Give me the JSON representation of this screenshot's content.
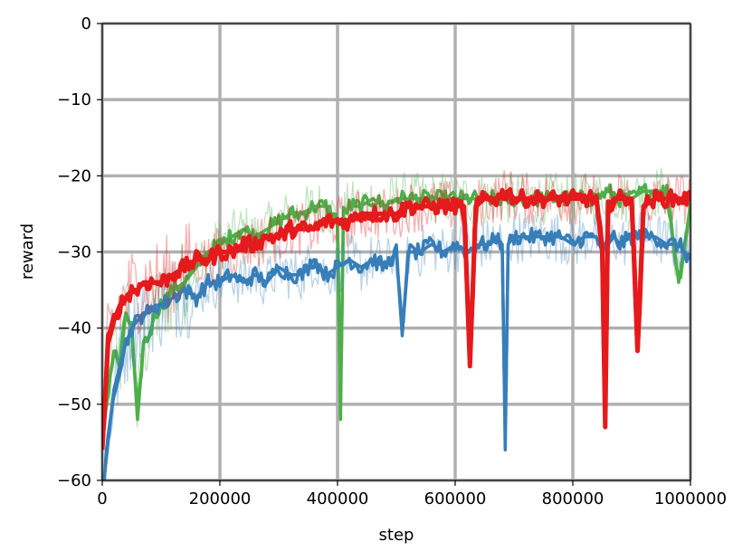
{
  "chart_data": {
    "type": "line",
    "xlabel": "step",
    "ylabel": "reward",
    "xlim": [
      0,
      1000000
    ],
    "ylim": [
      -60,
      0
    ],
    "x_ticks": [
      0,
      200000,
      400000,
      600000,
      800000,
      1000000
    ],
    "x_tick_labels": [
      "0",
      "200000",
      "400000",
      "600000",
      "800000",
      "1000000"
    ],
    "y_ticks": [
      0,
      -10,
      -20,
      -30,
      -40,
      -50,
      -60
    ],
    "y_tick_labels": [
      "0",
      "−10",
      "−20",
      "−30",
      "−40",
      "−50",
      "−60"
    ],
    "grid": true,
    "legend": "none",
    "colors": {
      "blue": "#377eb8",
      "green": "#4daf4a",
      "red": "#e41a1c",
      "grid": "#b0b0b0"
    },
    "series": [
      {
        "color": "#4daf4a",
        "x": [
          0,
          10000,
          20000,
          30000,
          40000,
          50000,
          60000,
          70000,
          80000,
          90000,
          100000,
          120000,
          140000,
          160000,
          180000,
          200000,
          220000,
          240000,
          260000,
          280000,
          300000,
          320000,
          340000,
          360000,
          380000,
          400000,
          405000,
          410000,
          420000,
          440000,
          460000,
          480000,
          500000,
          520000,
          540000,
          560000,
          580000,
          600000,
          620000,
          640000,
          660000,
          680000,
          700000,
          720000,
          740000,
          760000,
          780000,
          800000,
          820000,
          840000,
          860000,
          880000,
          900000,
          920000,
          940000,
          960000,
          980000,
          1000000
        ],
        "values": [
          -55,
          -48,
          -43,
          -45,
          -38,
          -40,
          -52,
          -42,
          -41,
          -38,
          -37,
          -35,
          -34,
          -32,
          -30,
          -29,
          -28,
          -27,
          -28,
          -27,
          -26,
          -25,
          -25,
          -24,
          -24,
          -26,
          -52,
          -25,
          -24,
          -24,
          -23,
          -24,
          -23,
          -23,
          -23,
          -23,
          -23,
          -23,
          -23,
          -23,
          -23,
          -23,
          -23,
          -23,
          -23,
          -23,
          -23,
          -23,
          -23,
          -23,
          -22,
          -23,
          -23,
          -22,
          -22,
          -22,
          -34,
          -24
        ]
      },
      {
        "color": "#377eb8",
        "x": [
          0,
          10000,
          20000,
          30000,
          40000,
          50000,
          60000,
          70000,
          80000,
          90000,
          100000,
          120000,
          140000,
          160000,
          180000,
          200000,
          220000,
          240000,
          260000,
          280000,
          300000,
          320000,
          340000,
          360000,
          380000,
          400000,
          420000,
          440000,
          460000,
          480000,
          500000,
          510000,
          520000,
          540000,
          560000,
          580000,
          600000,
          620000,
          640000,
          660000,
          670000,
          680000,
          685000,
          690000,
          700000,
          720000,
          740000,
          760000,
          780000,
          800000,
          820000,
          840000,
          850000,
          860000,
          870000,
          880000,
          900000,
          920000,
          940000,
          960000,
          980000,
          1000000
        ],
        "values": [
          -62,
          -55,
          -48,
          -45,
          -42,
          -40,
          -39,
          -38,
          -38,
          -37,
          -37,
          -36,
          -35,
          -36,
          -34,
          -34,
          -33,
          -34,
          -33,
          -34,
          -32,
          -33,
          -33,
          -31,
          -33,
          -32,
          -31,
          -32,
          -31,
          -32,
          -30,
          -41,
          -30,
          -30,
          -29,
          -30,
          -29,
          -30,
          -29,
          -29,
          -28,
          -29,
          -56,
          -29,
          -28,
          -28,
          -28,
          -28,
          -28,
          -29,
          -28,
          -28,
          -30,
          -29,
          -28,
          -29,
          -28,
          -28,
          -28,
          -29,
          -29,
          -31
        ]
      },
      {
        "color": "#e41a1c",
        "x": [
          0,
          10000,
          20000,
          30000,
          40000,
          50000,
          60000,
          70000,
          80000,
          90000,
          100000,
          120000,
          140000,
          160000,
          180000,
          200000,
          220000,
          240000,
          260000,
          280000,
          300000,
          320000,
          340000,
          360000,
          380000,
          400000,
          420000,
          440000,
          460000,
          480000,
          500000,
          520000,
          540000,
          560000,
          580000,
          600000,
          615000,
          625000,
          635000,
          650000,
          670000,
          690000,
          700000,
          720000,
          740000,
          760000,
          780000,
          800000,
          820000,
          840000,
          850000,
          855000,
          860000,
          870000,
          880000,
          900000,
          910000,
          920000,
          940000,
          960000,
          980000,
          1000000
        ],
        "values": [
          -56,
          -42,
          -39,
          -37,
          -36,
          -35,
          -35,
          -34,
          -34,
          -34,
          -34,
          -33,
          -32,
          -31,
          -31,
          -30,
          -30,
          -29,
          -29,
          -28,
          -28,
          -27,
          -27,
          -27,
          -26,
          -26,
          -26,
          -25,
          -25,
          -25,
          -25,
          -24,
          -24,
          -24,
          -24,
          -24,
          -24,
          -45,
          -24,
          -23,
          -23,
          -22,
          -23,
          -23,
          -23,
          -23,
          -23,
          -23,
          -23,
          -23,
          -30,
          -53,
          -24,
          -23,
          -23,
          -23,
          -43,
          -24,
          -23,
          -23,
          -23,
          -23
        ]
      }
    ]
  }
}
